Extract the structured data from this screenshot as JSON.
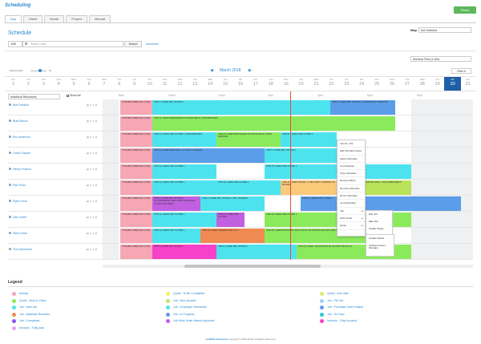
{
  "app": {
    "title": "Scheduling",
    "finish_label": "Finish"
  },
  "tabs": [
    {
      "label": "Day",
      "active": true
    },
    {
      "label": "Week",
      "active": false
    },
    {
      "label": "Month",
      "active": false
    },
    {
      "label": "Project",
      "active": false
    },
    {
      "label": "Manual",
      "active": false
    }
  ],
  "page": {
    "title": "Schedule"
  },
  "map": {
    "label": "Map",
    "value": "Not Selected"
  },
  "search": {
    "type": "JOB",
    "placeholder": "Search Jobs",
    "button": "Search",
    "advanced": "Advanced"
  },
  "time_mode": "Nominal Time (1.00x)",
  "week_height": {
    "label": "Week height",
    "value": "5x"
  },
  "calendar": {
    "month": "March 2018",
    "filter_label": "Filter",
    "days": [
      {
        "n": "THU",
        "d": "1"
      },
      {
        "n": "FRI",
        "d": "2"
      },
      {
        "n": "SAT",
        "d": "3"
      },
      {
        "n": "SUN",
        "d": "4"
      },
      {
        "n": "MON",
        "d": "5"
      },
      {
        "n": "TUE",
        "d": "6"
      },
      {
        "n": "WED",
        "d": "7"
      },
      {
        "n": "THU",
        "d": "8"
      },
      {
        "n": "FRI",
        "d": "9"
      },
      {
        "n": "SAT",
        "d": "10"
      },
      {
        "n": "SUN",
        "d": "11"
      },
      {
        "n": "MON",
        "d": "12"
      },
      {
        "n": "TUE",
        "d": "13"
      },
      {
        "n": "WED",
        "d": "14"
      },
      {
        "n": "THU",
        "d": "15"
      },
      {
        "n": "FRI",
        "d": "16"
      },
      {
        "n": "SAT",
        "d": "17"
      },
      {
        "n": "SUN",
        "d": "18"
      },
      {
        "n": "MON",
        "d": "19"
      },
      {
        "n": "TUE",
        "d": "20"
      },
      {
        "n": "WED",
        "d": "21"
      },
      {
        "n": "THU",
        "d": "22"
      },
      {
        "n": "FRI",
        "d": "23"
      },
      {
        "n": "SAT",
        "d": "24"
      },
      {
        "n": "SUN",
        "d": "25"
      },
      {
        "n": "MON",
        "d": "26"
      },
      {
        "n": "TUE",
        "d": "27"
      },
      {
        "n": "WED",
        "d": "28"
      },
      {
        "n": "THU",
        "d": "29"
      },
      {
        "n": "FRI",
        "d": "30",
        "active": true
      },
      {
        "n": "SAT",
        "d": "31"
      }
    ],
    "hours": [
      "8am",
      "10am",
      "12pm",
      "2pm",
      "4pm",
      "6pm",
      "8pm"
    ]
  },
  "resources": {
    "select": "Individual Resources",
    "show_all": "Show All"
  },
  "rows": [
    {
      "name": "Bob Franklin",
      "icons": "▤ ◷ ✎ ⚙",
      "bars": [
        {
          "text": "TOOLBOX MEETING (7AM)",
          "color": "#f7a6b4"
        },
        {
          "text": "JOB 7 | SHED ABC STORE 1",
          "color": "#4de3ee"
        },
        {
          "text": "JOB 8 | SHED ABC STORE 1 | OVERNIGHT WORKING",
          "color": "#5b9de8"
        }
      ]
    },
    {
      "name": "Brad Mauric",
      "icons": "▤ ◷ ✎ ⚙",
      "bars": [
        {
          "text": "TOOLBOX MEETING (7AM)",
          "color": "#f7a6b4"
        },
        {
          "text": "JOB 11 | SHED BRIDGEFIELD FORGE REFIT | PIPE BRIDGES",
          "color": "#8bea5c"
        }
      ]
    },
    {
      "name": "Eric Anderson",
      "icons": "▤ ◷ ✎ ⚙",
      "bars": [
        {
          "text": "TOOLBOX MEETING (7AM)",
          "color": "#f7a6b4"
        },
        {
          "text": "JOB 11 | SHED ABC STORE 1 | PIPE BRIDGES",
          "color": "#4de3ee"
        },
        {
          "text": "JOB 22 | SHED BRIDGEFIELD FORGE REFIT | PIPE BRIDGES",
          "color": "#8bea5c"
        },
        {
          "text": "JOB 24 | SHED ABC STORE 1",
          "color": "#4de3ee"
        }
      ]
    },
    {
      "name": "Grant Thacker",
      "icons": "▤ ◷ ✎ ⚙",
      "bars": [
        {
          "text": "TOOLBOX MEETING (7AM)",
          "color": "#f7a6b4"
        },
        {
          "text": "JOB 21 | SHED SERVICE 1 & FIND IT | BOILER",
          "color": "#5b9de8"
        },
        {
          "text": "JOB 5 | SHED ABC STORE 1",
          "color": "#4de3ee"
        }
      ]
    },
    {
      "name": "Henry Paulson",
      "icons": "▤ ◷ ✎ ⚙",
      "bars": [
        {
          "text": "TOOLBOX MEETING (7AM)",
          "color": "#f7a6b4"
        },
        {
          "text": "JOB 11 | SHED ABC STORE 1",
          "color": "#4de3ee"
        },
        {
          "text": "JOB 15 | SHED ABC STORE 1",
          "color": "#4de3ee"
        }
      ]
    },
    {
      "name": "Paul Ross",
      "icons": "▤ ◷ ✎ ⚙",
      "bars": [
        {
          "text": "TOOLBOX MEETING (7AM)",
          "color": "#f7a6b4"
        },
        {
          "text": "JOB 11 | SHED ABC STORE 1",
          "color": "#4de3ee"
        },
        {
          "text": "JOB 16 | SHED ABC STORE 1",
          "color": "#4de3ee"
        },
        {
          "text": "JOB 23 | SHED WOOD 2 | DELIVERY & REPAIR OF BOILER",
          "color": "#fbc97a"
        },
        {
          "text": "JOB 27 | SHED SHOPPING MALL | REFURBISHMENT",
          "color": "#b8e35a"
        }
      ]
    },
    {
      "name": "Ryan Force",
      "icons": "▤ ◷ ✎ ⚙",
      "bars": [
        {
          "text": "TOOLBOX MEETING (7AM)",
          "color": "#f7a6b4"
        },
        {
          "text": "JOB 1 | SHED ABC STORE 1 | OUTSTANDING NEW LEAD SCHEDULE LUNCH FOR MEET",
          "color": "#c060e0"
        },
        {
          "text": "JOB 2 | SHED ABC STORE 1 | BUY BAKERS",
          "color": "#4de3ee"
        },
        {
          "text": "JOB 26 | SHED ABC STORE 1",
          "color": "#5b9de8"
        }
      ]
    },
    {
      "name": "Sam Smith",
      "icons": "▤ ◷ ✎ ⚙",
      "bars": [
        {
          "text": "TOOLBOX MEETING (7AM)",
          "color": "#f7a6b4"
        },
        {
          "text": "JOB 11 | SHED ABC STORE 1",
          "color": "#4de3ee"
        },
        {
          "text": "JOB 20 | SHED ABC STORE 1",
          "color": "#c060e0"
        },
        {
          "text": "JOB 30 | SHED ABC STORE 1",
          "color": "#8bea5c"
        }
      ]
    },
    {
      "name": "Steve Hack",
      "icons": "▤ ◷ ✎ ⚙",
      "bars": [
        {
          "text": "TOOLBOX MEETING (7AM)",
          "color": "#f7a6b4"
        },
        {
          "text": "JOB 11 | SHED ABC STORE 1",
          "color": "#4de3ee"
        },
        {
          "text": "JOB 25 | SHED GARDEN ABC CO 1",
          "color": "#f08a52"
        },
        {
          "text": "JOB 28 | SHED BUSINESS SOLUTIONS | BUSINESS ENGINE APPLICATION",
          "color": "#8bea5c"
        }
      ]
    },
    {
      "name": "Tom Spearman",
      "icons": "▤ ◷ ✎ ⚙",
      "bars": [
        {
          "text": "TOOLBOX MEETING (7AM)",
          "color": "#f7a6b4"
        },
        {
          "text": "JOB 4 | SHED ABC STORE 1",
          "color": "#f542c8"
        },
        {
          "text": "JOB 8 | SHED ABC STORE 1",
          "color": "#4de3ee"
        },
        {
          "text": "JOB 29 | SHED JACKSONVILLE ISLAND OFFICE 25",
          "color": "#8bea5c"
        }
      ]
    }
  ],
  "context_menu": [
    {
      "label": "Job No. 131",
      "sub": false
    },
    {
      "label": "Edit Schedule Notes",
      "sub": false
    },
    {
      "label": "Select Schedule",
      "sub": false
    },
    {
      "label": "Cut Schedule",
      "sub": false
    },
    {
      "label": "Copy Schedule",
      "sub": false
    },
    {
      "label": "Remove Block",
      "sub": false
    },
    {
      "label": "Remove Schedule",
      "sub": false
    },
    {
      "label": "Rerun Schedule",
      "sub": false
    },
    {
      "label": "Lock Schedule",
      "sub": false
    },
    {
      "label": "Job",
      "sub": true
    },
    {
      "label": "Work Order",
      "sub": true
    },
    {
      "label": "Quote",
      "sub": true
    }
  ],
  "submenu_job": [
    "Edit Job",
    "Map Site",
    "Update Stage"
  ],
  "submenu_stage": [
    "Update Status",
    "Change Project Manager"
  ],
  "legend": {
    "title": "Legend",
    "items": [
      {
        "label": "Activity",
        "color": "#f7a6b4"
      },
      {
        "label": "Quote : To Be Completed",
        "color": "#f5f06a"
      },
      {
        "label": "Quote : Due date",
        "color": "#d9ee6a"
      },
      {
        "label": "Quote : Sent to Client",
        "color": "#8bea5c"
      },
      {
        "label": "Job : New Quoted",
        "color": "#bce56a"
      },
      {
        "label": "Job : PM Job",
        "color": "#9ad3f5"
      },
      {
        "label": "Job : New Job",
        "color": "#4de3ee"
      },
      {
        "label": "Job : Employee Scheduled",
        "color": "#4de3ee"
      },
      {
        "label": "Job : Purchase Order Raised",
        "color": "#5b9de8"
      },
      {
        "label": "Job : Materials Received",
        "color": "#f08a52"
      },
      {
        "label": "Job : In Progress",
        "color": "#5b9de8"
      },
      {
        "label": "Job : On Hold",
        "color": "#26c9d6"
      },
      {
        "label": "Job : Completed",
        "color": "#8a55e8"
      },
      {
        "label": "Job Work Order Needs Approved",
        "color": "#c060e0"
      },
      {
        "label": "Invoices : Fully Invoiced",
        "color": "#f542c8"
      },
      {
        "label": "Invoices : Fully paid",
        "color": "#e9a0f0"
      }
    ]
  },
  "footer": {
    "brand": "simPRO Enterprise",
    "text": "Copyright © 2003-2018. All Rights Reserved"
  }
}
